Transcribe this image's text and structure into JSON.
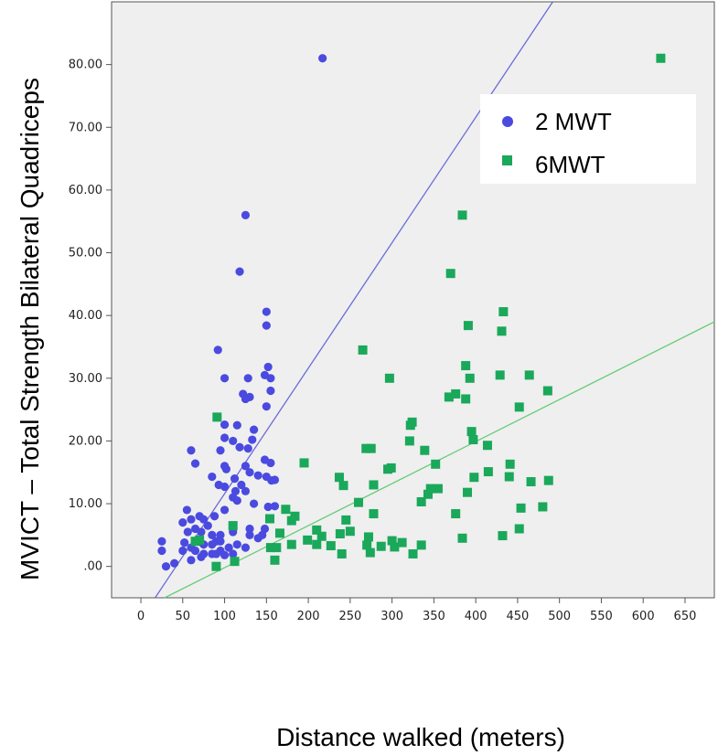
{
  "chart_data": {
    "type": "scatter",
    "title": "",
    "xlabel": "Distance walked (meters)",
    "ylabel": "MVICT – Total Strength Bilateral Quadriceps",
    "xlim": [
      -35,
      685
    ],
    "ylim": [
      -5,
      90
    ],
    "x_ticks": [
      "0",
      "50",
      "100",
      "150",
      "200",
      "250",
      "300",
      "350",
      "400",
      "450",
      "500",
      "550",
      "600",
      "650"
    ],
    "y_ticks": [
      ".00",
      "10.00",
      "20.00",
      "30.00",
      "40.00",
      "50.00",
      "60.00",
      "70.00",
      "80.00"
    ],
    "grid": false,
    "legend_position": "top-right",
    "series": [
      {
        "name": "2 MWT",
        "color": "#4a4ae0",
        "marker": "circle",
        "fit_line": {
          "slope": 0.2,
          "intercept": -8.4
        },
        "points": [
          [
            217,
            81
          ],
          [
            125,
            56
          ],
          [
            118,
            47
          ],
          [
            150,
            40.6
          ],
          [
            150,
            38.4
          ],
          [
            92,
            34.5
          ],
          [
            100,
            30
          ],
          [
            152,
            31.8
          ],
          [
            148,
            30.5
          ],
          [
            155,
            30
          ],
          [
            128,
            30
          ],
          [
            155,
            28
          ],
          [
            122,
            27.5
          ],
          [
            125,
            26.7
          ],
          [
            130,
            27
          ],
          [
            150,
            25.5
          ],
          [
            100,
            22.6
          ],
          [
            115,
            22.5
          ],
          [
            135,
            21.8
          ],
          [
            100,
            20.5
          ],
          [
            133,
            20.2
          ],
          [
            110,
            20
          ],
          [
            118,
            19
          ],
          [
            128,
            18.8
          ],
          [
            95,
            18.5
          ],
          [
            60,
            18.5
          ],
          [
            148,
            17
          ],
          [
            100,
            16
          ],
          [
            65,
            16.4
          ],
          [
            125,
            16
          ],
          [
            155,
            16.5
          ],
          [
            102,
            15.5
          ],
          [
            130,
            15
          ],
          [
            140,
            14.5
          ],
          [
            112,
            14
          ],
          [
            150,
            14.3
          ],
          [
            160,
            13.8
          ],
          [
            156,
            13.7
          ],
          [
            85,
            14.3
          ],
          [
            120,
            13
          ],
          [
            93,
            13
          ],
          [
            100,
            12.7
          ],
          [
            113,
            12
          ],
          [
            125,
            12
          ],
          [
            110,
            11
          ],
          [
            115,
            10.5
          ],
          [
            135,
            10
          ],
          [
            152,
            9.5
          ],
          [
            160,
            9.6
          ],
          [
            100,
            9
          ],
          [
            88,
            8
          ],
          [
            55,
            9
          ],
          [
            70,
            8
          ],
          [
            60,
            7.5
          ],
          [
            75,
            7.5
          ],
          [
            50,
            7
          ],
          [
            80,
            6.5
          ],
          [
            65,
            6
          ],
          [
            56,
            5.5
          ],
          [
            72,
            5.5
          ],
          [
            85,
            5
          ],
          [
            95,
            5
          ],
          [
            110,
            5.5
          ],
          [
            130,
            6
          ],
          [
            145,
            5
          ],
          [
            95,
            4
          ],
          [
            90,
            4
          ],
          [
            85,
            3.5
          ],
          [
            75,
            3.5
          ],
          [
            70,
            4
          ],
          [
            52,
            3.8
          ],
          [
            60,
            3
          ],
          [
            50,
            2.5
          ],
          [
            65,
            2.5
          ],
          [
            75,
            2
          ],
          [
            85,
            2
          ],
          [
            95,
            2.5
          ],
          [
            105,
            3
          ],
          [
            110,
            2
          ],
          [
            125,
            3
          ],
          [
            130,
            5
          ],
          [
            140,
            4.5
          ],
          [
            148,
            6
          ],
          [
            25,
            4
          ],
          [
            25,
            2.5
          ],
          [
            30,
            0
          ],
          [
            40,
            0.5
          ],
          [
            60,
            1
          ],
          [
            72,
            1.5
          ],
          [
            90,
            2
          ],
          [
            100,
            1.8
          ],
          [
            115,
            3.5
          ]
        ]
      },
      {
        "name": "6MWT",
        "color": "#1aa85a",
        "marker": "square",
        "fit_line": {
          "slope": 0.067,
          "intercept": -6.9
        },
        "points": [
          [
            621,
            81
          ],
          [
            384,
            56
          ],
          [
            370,
            46.7
          ],
          [
            433,
            40.6
          ],
          [
            391,
            38.4
          ],
          [
            431,
            37.5
          ],
          [
            265,
            34.5
          ],
          [
            388,
            32
          ],
          [
            297,
            30
          ],
          [
            429,
            30.5
          ],
          [
            464,
            30.5
          ],
          [
            393,
            30
          ],
          [
            486,
            28
          ],
          [
            376,
            27.5
          ],
          [
            368,
            27
          ],
          [
            388,
            26.7
          ],
          [
            452,
            25.4
          ],
          [
            324,
            23
          ],
          [
            322,
            22.5
          ],
          [
            91,
            23.8
          ],
          [
            395,
            21.5
          ],
          [
            397,
            20.2
          ],
          [
            321,
            20
          ],
          [
            414,
            19.3
          ],
          [
            339,
            18.5
          ],
          [
            269,
            18.8
          ],
          [
            275,
            18.8
          ],
          [
            195,
            16.5
          ],
          [
            352,
            16.3
          ],
          [
            441,
            16.3
          ],
          [
            295,
            15.5
          ],
          [
            299,
            15.7
          ],
          [
            415,
            15.1
          ],
          [
            237,
            14.2
          ],
          [
            440,
            14.3
          ],
          [
            398,
            14.2
          ],
          [
            466,
            13.5
          ],
          [
            487,
            13.7
          ],
          [
            242,
            12.9
          ],
          [
            278,
            13
          ],
          [
            346,
            12.4
          ],
          [
            355,
            12.4
          ],
          [
            343,
            11.5
          ],
          [
            390,
            11.8
          ],
          [
            335,
            10.3
          ],
          [
            260,
            10.2
          ],
          [
            173,
            9.1
          ],
          [
            376,
            8.4
          ],
          [
            278,
            8.4
          ],
          [
            154,
            7.6
          ],
          [
            184,
            8
          ],
          [
            180,
            7.3
          ],
          [
            245,
            7.4
          ],
          [
            454,
            9.3
          ],
          [
            480,
            9.5
          ],
          [
            452,
            6
          ],
          [
            210,
            5.8
          ],
          [
            250,
            5.6
          ],
          [
            238,
            5.2
          ],
          [
            216,
            4.8
          ],
          [
            199,
            4.2
          ],
          [
            272,
            4.7
          ],
          [
            432,
            4.9
          ],
          [
            384,
            4.5
          ],
          [
            166,
            5.3
          ],
          [
            300,
            4.1
          ],
          [
            335,
            3.4
          ],
          [
            303,
            3.1
          ],
          [
            287,
            3.2
          ],
          [
            312,
            3.8
          ],
          [
            270,
            3.4
          ],
          [
            210,
            3.5
          ],
          [
            155,
            3
          ],
          [
            162,
            3
          ],
          [
            180,
            3.5
          ],
          [
            227,
            3.3
          ],
          [
            325,
            2
          ],
          [
            274,
            2.2
          ],
          [
            240,
            2
          ],
          [
            160,
            1
          ],
          [
            112,
            0.8
          ],
          [
            90,
            0
          ],
          [
            110,
            6.5
          ],
          [
            70,
            4.2
          ],
          [
            65,
            4
          ]
        ]
      }
    ]
  }
}
